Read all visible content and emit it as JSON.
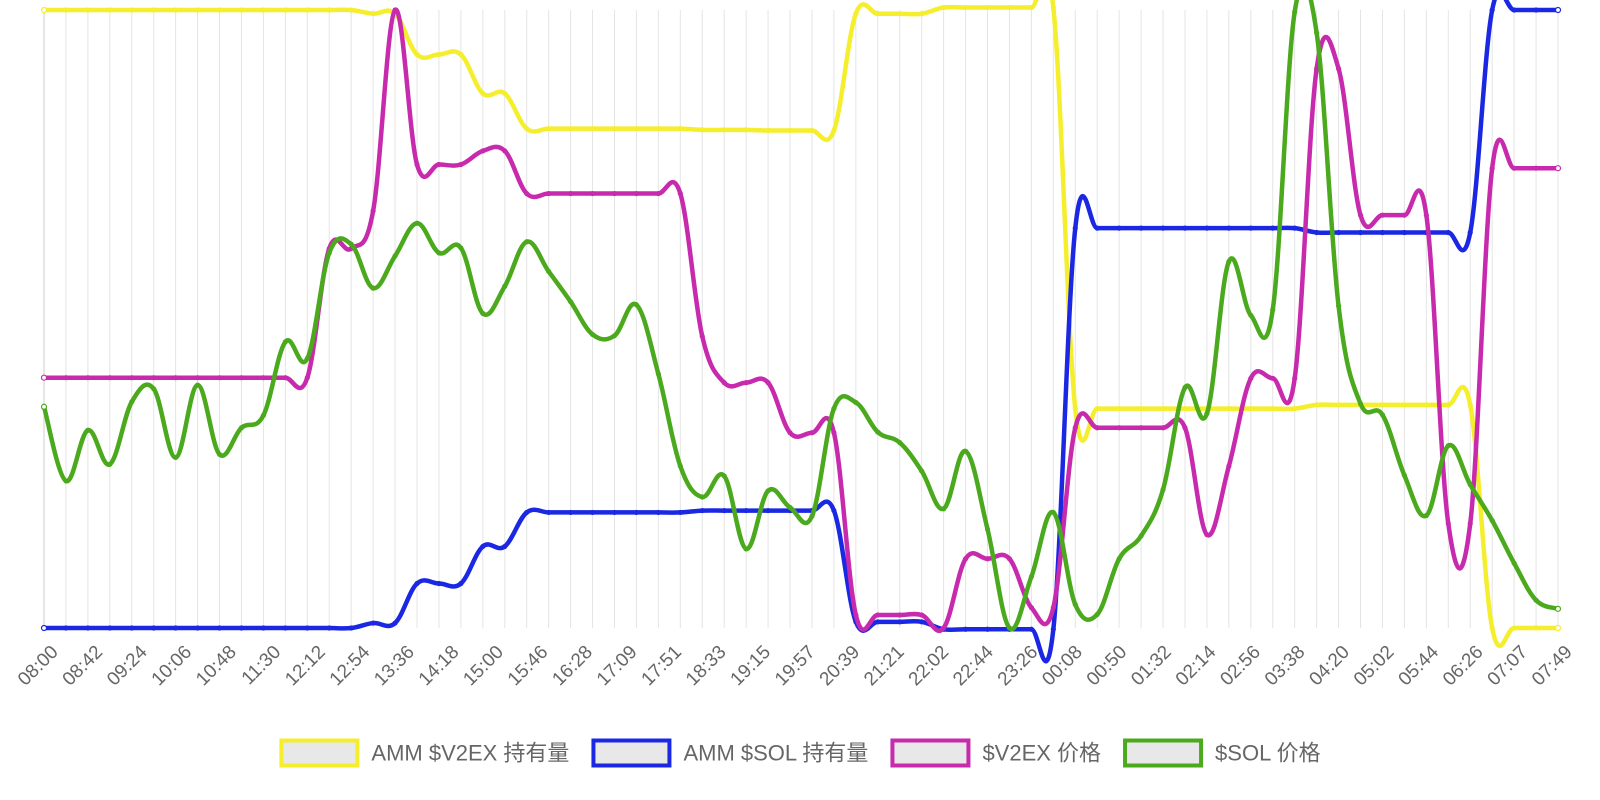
{
  "chart_data": {
    "type": "line",
    "title": "",
    "xlabel": "",
    "ylabel": "",
    "y_axis_labels_shown": false,
    "grid": "vertical",
    "legend_position": "bottom",
    "ylim": [
      0,
      100
    ],
    "x": [
      "08:00",
      "08:21",
      "08:42",
      "09:03",
      "09:24",
      "09:45",
      "10:06",
      "10:27",
      "10:48",
      "11:09",
      "11:30",
      "11:51",
      "12:12",
      "12:33",
      "12:54",
      "13:15",
      "13:36",
      "13:57",
      "14:18",
      "14:39",
      "15:00",
      "15:21",
      "15:46",
      "16:07",
      "16:28",
      "16:49",
      "17:09",
      "17:30",
      "17:51",
      "18:12",
      "18:33",
      "18:54",
      "19:15",
      "19:36",
      "19:57",
      "20:18",
      "20:39",
      "21:00",
      "21:21",
      "21:42",
      "22:02",
      "22:23",
      "22:44",
      "23:05",
      "23:26",
      "23:47",
      "00:08",
      "00:29",
      "00:50",
      "01:11",
      "01:32",
      "01:53",
      "02:14",
      "02:35",
      "02:56",
      "03:17",
      "03:38",
      "03:59",
      "04:20",
      "04:41",
      "05:02",
      "05:23",
      "05:44",
      "06:05",
      "06:26",
      "06:47",
      "07:07",
      "07:28",
      "07:49",
      "08:10"
    ],
    "x_tick_labels": [
      "08:00",
      "08:42",
      "09:24",
      "10:06",
      "10:48",
      "11:30",
      "12:12",
      "12:54",
      "13:36",
      "14:18",
      "15:00",
      "15:46",
      "16:28",
      "17:09",
      "17:51",
      "18:33",
      "19:15",
      "19:57",
      "20:39",
      "21:21",
      "22:02",
      "22:44",
      "23:26",
      "00:08",
      "00:50",
      "01:32",
      "02:14",
      "02:56",
      "03:38",
      "04:20",
      "05:02",
      "05:44",
      "06:26",
      "07:07",
      "07:49"
    ],
    "series": [
      {
        "name": "AMM $V2EX 持有量",
        "color": "#f5ee2c",
        "values": [
          100,
          100,
          100,
          100,
          100,
          100,
          100,
          100,
          100,
          100,
          100,
          100,
          100,
          100,
          100,
          99.4,
          99.4,
          92.8,
          92.8,
          92.8,
          86.5,
          86.5,
          80.8,
          80.8,
          80.8,
          80.8,
          80.8,
          80.8,
          80.8,
          80.8,
          80.6,
          80.6,
          80.6,
          80.5,
          80.5,
          80.5,
          80.5,
          99.4,
          99.4,
          99.4,
          99.4,
          100.4,
          100.4,
          100.4,
          100.4,
          100.4,
          100.4,
          35.5,
          35.5,
          35.5,
          35.5,
          35.5,
          35.5,
          35.5,
          35.5,
          35.5,
          35.5,
          35.5,
          36.1,
          36.1,
          36.1,
          36.1,
          36.1,
          36.1,
          36.1,
          36.1,
          0,
          0,
          0,
          0
        ]
      },
      {
        "name": "AMM $SOL 持有量",
        "color": "#1b28e3",
        "values": [
          0,
          0,
          0,
          0,
          0,
          0,
          0,
          0,
          0,
          0,
          0,
          0,
          0,
          0,
          0,
          0.8,
          0.8,
          7.2,
          7.2,
          7.2,
          13.2,
          13.2,
          18.7,
          18.7,
          18.7,
          18.7,
          18.7,
          18.7,
          18.7,
          18.7,
          19,
          19,
          19,
          19,
          19,
          19,
          19,
          1,
          1,
          1,
          1,
          -0.2,
          -0.2,
          -0.2,
          -0.2,
          -0.2,
          -0.2,
          64.7,
          64.7,
          64.7,
          64.7,
          64.7,
          64.7,
          64.7,
          64.7,
          64.7,
          64.7,
          64.7,
          64,
          64,
          64,
          64,
          64,
          64,
          64,
          64,
          100,
          100,
          100,
          100
        ]
      },
      {
        "name": "$V2EX 价格",
        "color": "#c72aad",
        "values": [
          40.5,
          40.5,
          40.5,
          40.5,
          40.5,
          40.5,
          40.5,
          40.5,
          40.5,
          40.5,
          40.5,
          40.5,
          40.5,
          61.4,
          61.4,
          67.5,
          100,
          75,
          75,
          75,
          77.2,
          77.2,
          70.3,
          70.3,
          70.3,
          70.3,
          70.3,
          70.3,
          70.3,
          70.3,
          47.2,
          39.7,
          39.7,
          39.7,
          31.6,
          31.6,
          31.6,
          2.1,
          2.1,
          2.1,
          2.1,
          0,
          11.2,
          11.2,
          11.2,
          3.3,
          3.3,
          32.4,
          32.4,
          32.4,
          32.4,
          32.4,
          32.4,
          15.1,
          26.2,
          40.4,
          40.4,
          40.4,
          90.5,
          90.5,
          66.8,
          66.8,
          66.8,
          66.8,
          16.9,
          16.9,
          74.4,
          74.4,
          74.4,
          74.4
        ]
      },
      {
        "name": "$SOL 价格",
        "color": "#4ba91d",
        "values": [
          35.8,
          23.8,
          32,
          26.5,
          36.6,
          38.7,
          27.6,
          39.3,
          28.1,
          32.4,
          34.4,
          46.3,
          43.6,
          60.7,
          62.1,
          55,
          60.2,
          65.5,
          60.7,
          61.5,
          50.9,
          55.3,
          62.5,
          57.7,
          52.8,
          47.5,
          47.3,
          52.3,
          41.1,
          26.2,
          21.2,
          24.6,
          12.8,
          22.2,
          19.5,
          18.1,
          35.5,
          36.5,
          31.7,
          30,
          25.4,
          19.3,
          28.6,
          16,
          0,
          8.3,
          18.7,
          3.8,
          2.2,
          11.2,
          14.9,
          22.4,
          38.9,
          34.7,
          59.3,
          50.6,
          51.5,
          99.7,
          96.3,
          52.1,
          36.3,
          34.5,
          24.7,
          18.2,
          29.5,
          23.2,
          17.4,
          10.5,
          4.5,
          3.1
        ]
      }
    ]
  }
}
